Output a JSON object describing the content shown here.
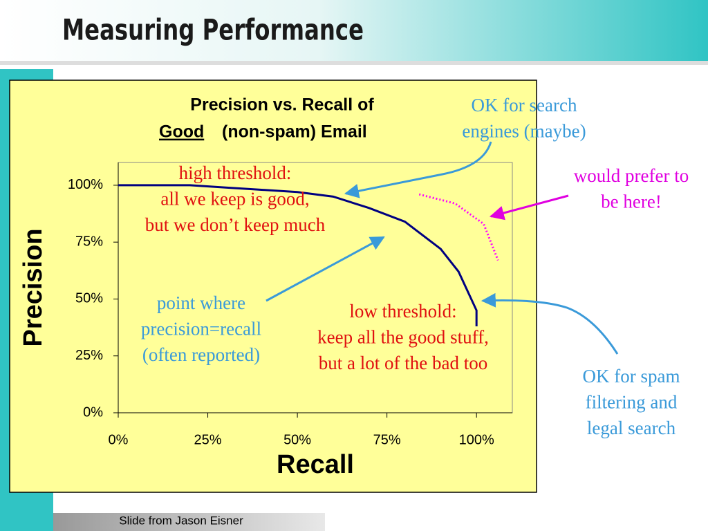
{
  "slide_title": "Measuring Performance",
  "footer": "Slide from Jason Eisner",
  "chart_data": {
    "type": "line",
    "title": [
      "Precision vs. Recall of",
      "Good",
      "(non-spam) Email"
    ],
    "x_label": "Recall",
    "y_label": "Precision",
    "xlim": [
      0,
      110
    ],
    "ylim": [
      0,
      110
    ],
    "xticks": [
      {
        "value": 0,
        "label": "0%"
      },
      {
        "value": 25,
        "label": "25%"
      },
      {
        "value": 50,
        "label": "50%"
      },
      {
        "value": 75,
        "label": "75%"
      },
      {
        "value": 100,
        "label": "100%"
      }
    ],
    "yticks": [
      {
        "value": 0,
        "label": "0%"
      },
      {
        "value": 25,
        "label": "25%"
      },
      {
        "value": 50,
        "label": "50%"
      },
      {
        "value": 75,
        "label": "75%"
      },
      {
        "value": 100,
        "label": "100%"
      }
    ],
    "series": [
      {
        "color": "#000080",
        "style": "solid",
        "x": [
          0,
          10,
          20,
          30,
          40,
          50,
          60,
          70,
          80,
          90,
          95,
          100,
          100
        ],
        "values": [
          100,
          100,
          100,
          99,
          98,
          97,
          95,
          90,
          84,
          72,
          62,
          45,
          38
        ]
      },
      {
        "color": "#ff00ff",
        "style": "dotted",
        "x": [
          84,
          94,
          102,
          106
        ],
        "values": [
          96,
          92,
          83,
          67
        ]
      }
    ],
    "annotations": [
      {
        "lines": [
          "high threshold:",
          "all we keep is good,",
          "but we don’t keep much"
        ],
        "color": "#e01010"
      },
      {
        "lines": [
          "OK for search",
          "engines (maybe)"
        ],
        "color": "#3a9ad9"
      },
      {
        "lines": [
          "would prefer to",
          "be here!"
        ],
        "color": "#e000e0"
      },
      {
        "lines": [
          "point where",
          "precision=recall",
          "(often reported)"
        ],
        "color": "#3a9ad9"
      },
      {
        "lines": [
          "low threshold:",
          "keep all the good stuff,",
          "but a lot of the bad too"
        ],
        "color": "#e01010"
      },
      {
        "lines": [
          "OK for spam",
          "filtering and",
          "legal search"
        ],
        "color": "#3a9ad9"
      }
    ]
  }
}
